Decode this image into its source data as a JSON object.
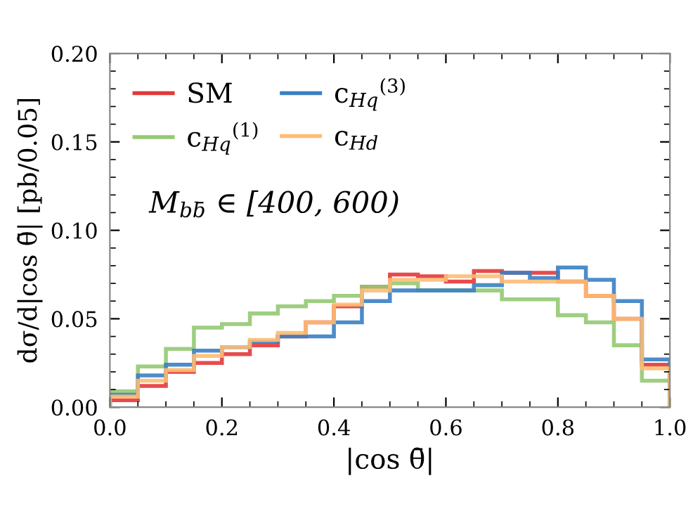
{
  "chart_data": {
    "type": "histogram",
    "xlabel": "|cos θ̄|",
    "ylabel": "dσ/d|cos θ̄| [pb/0.05]",
    "bins": [
      0.0,
      0.05,
      0.1,
      0.15,
      0.2,
      0.25,
      0.3,
      0.35,
      0.4,
      0.45,
      0.5,
      0.55,
      0.6,
      0.65,
      0.7,
      0.75,
      0.8,
      0.85,
      0.9,
      0.95,
      1.0
    ],
    "series": [
      {
        "name": "SM",
        "color": "#e2383a",
        "values": [
          0.004,
          0.012,
          0.02,
          0.025,
          0.03,
          0.035,
          0.04,
          0.048,
          0.057,
          0.068,
          0.075,
          0.074,
          0.071,
          0.077,
          0.076,
          0.076,
          0.071,
          0.063,
          0.05,
          0.024
        ]
      },
      {
        "name": "c$_{Hq}$$^{(1)}$",
        "color": "#94c973",
        "values": [
          0.009,
          0.023,
          0.033,
          0.045,
          0.047,
          0.053,
          0.057,
          0.06,
          0.063,
          0.068,
          0.07,
          0.066,
          0.066,
          0.066,
          0.061,
          0.061,
          0.052,
          0.048,
          0.035,
          0.015
        ]
      },
      {
        "name": "c$_{Hq}$$^{(3)}$",
        "color": "#3a7fc2",
        "values": [
          0.007,
          0.018,
          0.024,
          0.032,
          0.034,
          0.037,
          0.04,
          0.04,
          0.048,
          0.06,
          0.066,
          0.066,
          0.066,
          0.069,
          0.076,
          0.073,
          0.079,
          0.072,
          0.06,
          0.027
        ]
      },
      {
        "name": "c$_{Hd}$",
        "color": "#fdbd74",
        "values": [
          0.006,
          0.015,
          0.021,
          0.029,
          0.034,
          0.038,
          0.042,
          0.048,
          0.058,
          0.066,
          0.072,
          0.072,
          0.074,
          0.074,
          0.071,
          0.071,
          0.071,
          0.063,
          0.05,
          0.022
        ]
      }
    ],
    "xlim": [
      0.0,
      1.0
    ],
    "ylim": [
      0.0,
      0.2
    ],
    "xticks": [
      {
        "value": 0.0,
        "label": "0.0"
      },
      0.2,
      0.4,
      0.6,
      0.8,
      {
        "value": 1.0,
        "label": "1.0"
      }
    ],
    "yticks": [
      {
        "value": 0.0,
        "label": "0.00"
      },
      0.05,
      {
        "value": 0.1,
        "label": "0.10"
      },
      0.15,
      {
        "value": 0.2,
        "label": "0.20"
      }
    ],
    "annotations": [
      "M$_{bb̄}$ ∈ [400, 600)"
    ],
    "legend": "top left",
    "grid": false
  }
}
